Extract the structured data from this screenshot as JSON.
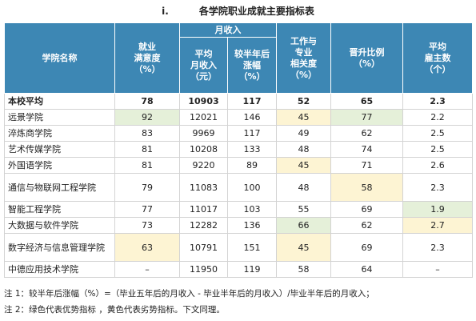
{
  "title": {
    "number": "i.",
    "text": "各学院职业成就主要指标表"
  },
  "headers": {
    "college": "学院名称",
    "satisfaction": "就业\n满意度\n（%）",
    "income_group": "月收入",
    "avg_income": "平均\n月收入\n（元）",
    "income_growth": "较半年后\n涨幅\n（%）",
    "relevance": "工作与\n专业\n相关度\n（%）",
    "promotion": "晋升比例\n（%）",
    "employers": "平均\n雇主数\n（个）"
  },
  "rows": [
    {
      "name": "本校平均",
      "sat": "78",
      "income": "10903",
      "growth": "117",
      "rel": "52",
      "promo": "65",
      "emp": "2.3"
    },
    {
      "name": "远景学院",
      "sat": "92",
      "income": "12021",
      "growth": "146",
      "rel": "45",
      "promo": "77",
      "emp": "2.2"
    },
    {
      "name": "淬炼商学院",
      "sat": "83",
      "income": "9969",
      "growth": "117",
      "rel": "49",
      "promo": "62",
      "emp": "2.5"
    },
    {
      "name": "艺术传媒学院",
      "sat": "81",
      "income": "10208",
      "growth": "133",
      "rel": "48",
      "promo": "74",
      "emp": "2.5"
    },
    {
      "name": "外国语学院",
      "sat": "81",
      "income": "9220",
      "growth": "89",
      "rel": "45",
      "promo": "71",
      "emp": "2.6"
    },
    {
      "name": "通信与物联网工程学院",
      "sat": "79",
      "income": "11083",
      "growth": "100",
      "rel": "48",
      "promo": "58",
      "emp": "2.3"
    },
    {
      "name": "智能工程学院",
      "sat": "77",
      "income": "11017",
      "growth": "103",
      "rel": "55",
      "promo": "69",
      "emp": "1.9"
    },
    {
      "name": "大数据与软件学院",
      "sat": "73",
      "income": "12282",
      "growth": "136",
      "rel": "66",
      "promo": "62",
      "emp": "2.7"
    },
    {
      "name": "数字经济与信息管理学院",
      "sat": "63",
      "income": "10791",
      "growth": "151",
      "rel": "45",
      "promo": "69",
      "emp": "2.3"
    },
    {
      "name": "中德应用技术学院",
      "sat": "–",
      "income": "11950",
      "growth": "119",
      "rel": "58",
      "promo": "64",
      "emp": "–"
    }
  ],
  "notes": [
    "注 1：较半年后涨幅（%）=（毕业五年后的月收入 - 毕业半年后的月收入）/毕业半年后的月收入；",
    "注 2：绿色代表优势指标 ，黄色代表劣势指标。下文同理。"
  ],
  "colors": {
    "header": "#3d87b4",
    "advantage_green": "#e5f0d9",
    "disadvantage_yellow": "#fdf4d3"
  }
}
